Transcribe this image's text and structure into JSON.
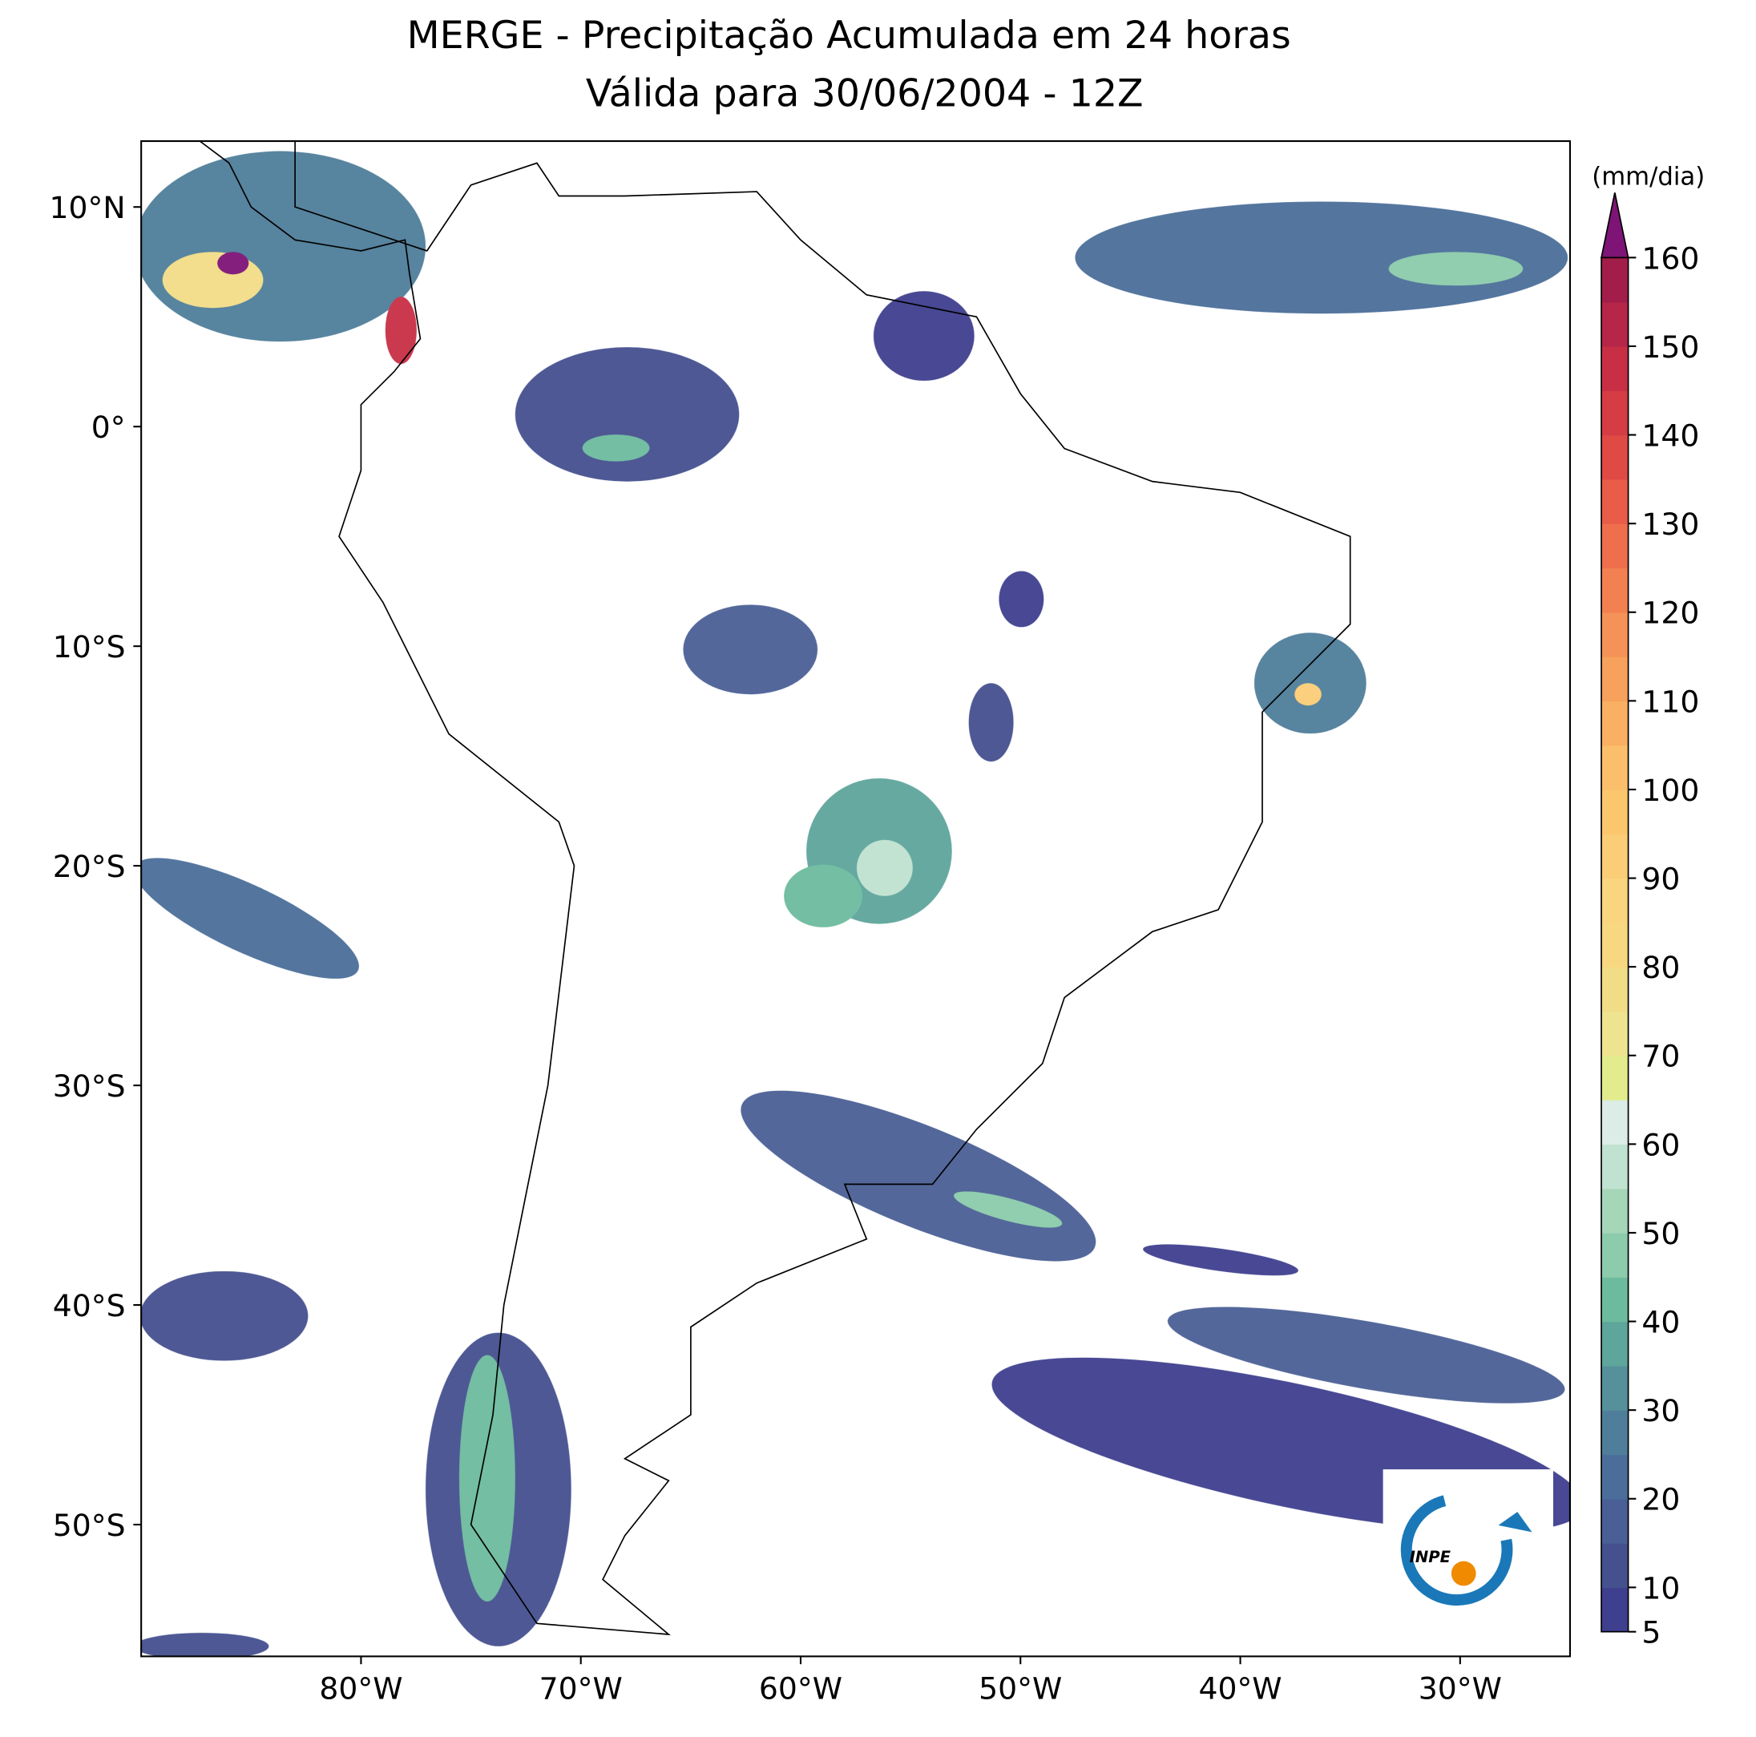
{
  "chart_data": {
    "type": "map",
    "title": "MERGE - Precipitação Acumulada em 24 horas",
    "subtitle": "Válida para 30/06/2004 - 12Z",
    "xlim": [
      -90,
      -25
    ],
    "ylim": [
      -56,
      13
    ],
    "xticks": [
      {
        "value": -80,
        "label": "80°W"
      },
      {
        "value": -70,
        "label": "70°W"
      },
      {
        "value": -60,
        "label": "60°W"
      },
      {
        "value": -50,
        "label": "50°W"
      },
      {
        "value": -40,
        "label": "40°W"
      },
      {
        "value": -30,
        "label": "30°W"
      }
    ],
    "yticks": [
      {
        "value": 10,
        "label": "10°N"
      },
      {
        "value": 0,
        "label": "0°"
      },
      {
        "value": -10,
        "label": "10°S"
      },
      {
        "value": -20,
        "label": "20°S"
      },
      {
        "value": -30,
        "label": "30°S"
      },
      {
        "value": -40,
        "label": "40°S"
      },
      {
        "value": -50,
        "label": "50°S"
      }
    ],
    "colorbar": {
      "label": "(mm/dia)",
      "lim": [
        5,
        160
      ],
      "ticks": [
        5,
        10,
        20,
        30,
        40,
        50,
        60,
        70,
        80,
        90,
        100,
        110,
        120,
        130,
        140,
        150,
        160
      ],
      "colors": [
        "#3f3f8f",
        "#45508f",
        "#4a5f95",
        "#4a6e99",
        "#4f7e9a",
        "#55909b",
        "#5ea59b",
        "#6dbb9f",
        "#8ccbab",
        "#a6d6b8",
        "#c0e2d0",
        "#dbede6",
        "#e3ec8d",
        "#eee490",
        "#f2dd87",
        "#f7d880",
        "#fad57f",
        "#fbcd76",
        "#fcc66c",
        "#fbbe6b",
        "#f9b062",
        "#f7a15c",
        "#f59257",
        "#f28051",
        "#ef6f4c",
        "#e95c47",
        "#e04a45",
        "#d53c43",
        "#c82f45",
        "#b52648",
        "#a21d4a"
      ],
      "extend_color": "#7e1476"
    },
    "logo": "INPE"
  }
}
